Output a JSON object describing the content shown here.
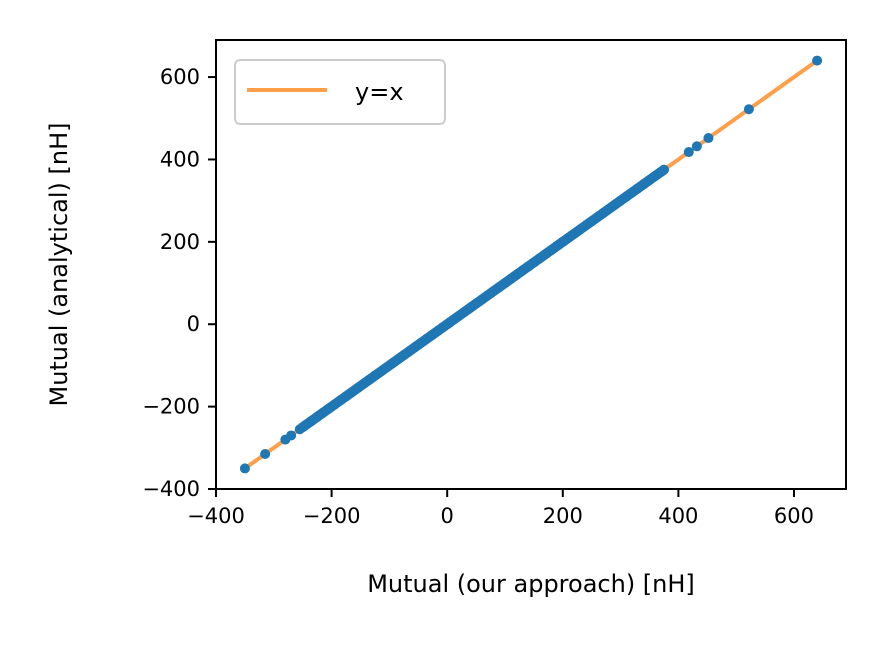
{
  "chart_data": {
    "type": "scatter",
    "xlabel": "Mutual (our approach) [nH]",
    "ylabel": "Mutual (analytical) [nH]",
    "xlim": [
      -400,
      690
    ],
    "ylim": [
      -400,
      690
    ],
    "xticks": [
      -400,
      -200,
      0,
      200,
      400,
      600
    ],
    "yticks": [
      -400,
      -200,
      0,
      200,
      400,
      600
    ],
    "xtick_labels": [
      "−400",
      "−200",
      "0",
      "200",
      "400",
      "600"
    ],
    "ytick_labels": [
      "−400",
      "−200",
      "0",
      "200",
      "400",
      "600"
    ],
    "grid": false,
    "legend": {
      "position": "top-left",
      "entries": [
        "y=x"
      ]
    },
    "series": [
      {
        "kind": "line",
        "name": "y=x",
        "color": "#ff9f4a",
        "x": [
          -350,
          640
        ],
        "y": [
          -350,
          640
        ]
      },
      {
        "kind": "scatter",
        "color": "#1f77b4",
        "x": [
          -350,
          -315,
          -280,
          -270,
          -255,
          -245,
          -235,
          -225,
          -215,
          -205,
          -195,
          -185,
          -175,
          -165,
          -155,
          -145,
          -135,
          -125,
          -115,
          -105,
          -95,
          -85,
          -75,
          -65,
          -55,
          -45,
          -35,
          -25,
          -15,
          -8,
          0,
          5,
          12,
          20,
          30,
          40,
          50,
          60,
          70,
          80,
          90,
          100,
          110,
          120,
          130,
          140,
          150,
          160,
          170,
          180,
          190,
          200,
          210,
          220,
          230,
          240,
          250,
          260,
          270,
          280,
          290,
          300,
          310,
          320,
          330,
          340,
          350,
          360,
          370,
          375,
          418,
          432,
          452,
          522,
          640
        ],
        "y": [
          -350,
          -315,
          -280,
          -270,
          -255,
          -245,
          -235,
          -225,
          -215,
          -205,
          -195,
          -185,
          -175,
          -165,
          -155,
          -145,
          -135,
          -125,
          -115,
          -105,
          -95,
          -85,
          -75,
          -65,
          -55,
          -45,
          -35,
          -25,
          -15,
          -8,
          0,
          5,
          12,
          20,
          30,
          40,
          50,
          60,
          70,
          80,
          90,
          100,
          110,
          120,
          130,
          140,
          150,
          160,
          170,
          180,
          190,
          200,
          210,
          220,
          230,
          240,
          250,
          260,
          270,
          280,
          290,
          300,
          310,
          320,
          330,
          340,
          350,
          360,
          370,
          375,
          418,
          432,
          452,
          522,
          640
        ]
      }
    ]
  }
}
